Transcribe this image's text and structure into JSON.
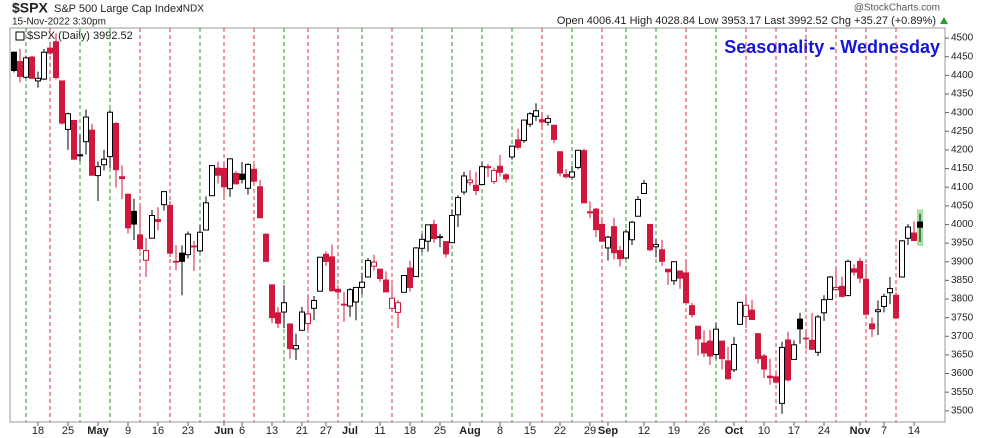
{
  "chart_data": {
    "type": "candlestick",
    "symbol": "$SPX",
    "name": "S&P 500 Large Cap Index",
    "exchange": "INDX",
    "datetime": "15-Nov-2022 3:30pm",
    "quote": "Open 4006.41 High 4028.84 Low 3953.17 Last 3992.52 Chg +35.27 (+0.89%)",
    "watermark": "@StockCharts.com",
    "title": "Seasonality - Wednesday",
    "series_name": "$SPX (Daily) 3992.52",
    "up_color": "#000000",
    "down_color": "#d0183e",
    "categories": [
      null,
      null,
      null,
      null,
      "18",
      null,
      null,
      null,
      null,
      "25",
      null,
      null,
      null,
      null,
      "May",
      null,
      null,
      null,
      null,
      "9",
      null,
      null,
      null,
      null,
      "16",
      null,
      null,
      null,
      null,
      "23",
      null,
      null,
      null,
      null,
      null,
      "Jun",
      null,
      null,
      "6",
      null,
      null,
      null,
      null,
      "13",
      null,
      null,
      null,
      null,
      "21",
      null,
      null,
      null,
      "27",
      null,
      null,
      null,
      "Jul",
      null,
      null,
      null,
      null,
      "11",
      null,
      null,
      null,
      null,
      "18",
      null,
      null,
      null,
      null,
      "25",
      null,
      null,
      null,
      null,
      "Aug",
      null,
      null,
      null,
      null,
      "8",
      null,
      null,
      null,
      null,
      "15",
      null,
      null,
      null,
      null,
      "22",
      null,
      null,
      null,
      null,
      "29",
      null,
      null,
      "Sep",
      null,
      null,
      null,
      null,
      null,
      "12",
      null,
      null,
      null,
      null,
      "19",
      null,
      null,
      null,
      null,
      "26",
      null,
      null,
      null,
      null,
      "Oct",
      null,
      null,
      null,
      null,
      "10",
      null,
      null,
      null,
      null,
      "17",
      null,
      null,
      null,
      null,
      "24",
      null,
      null,
      null,
      null,
      null,
      "Nov",
      null,
      null,
      null,
      "7",
      null,
      null,
      null,
      null,
      "14",
      null
    ],
    "open": [
      4462,
      4437,
      4395,
      4449,
      4385,
      4390,
      4473,
      4490,
      4385,
      4255,
      4279,
      4187,
      4222,
      4253,
      4131,
      4160,
      4182,
      4271,
      4128,
      4081,
      4035,
      3972,
      3904,
      3963,
      4013,
      4053,
      4051,
      3900,
      3923,
      3919,
      3942,
      3929,
      3985,
      4077,
      4151,
      4150,
      4096,
      4137,
      4135,
      4097,
      4148,
      4101,
      3974,
      3838,
      3763,
      3765,
      3733,
      3666,
      3716,
      3734,
      3775,
      3821,
      3920,
      3913,
      3826,
      3786,
      3781,
      3792,
      3831,
      3859,
      3888,
      3880,
      3851,
      3775,
      3764,
      3818,
      3883,
      3860,
      3936,
      3955,
      4000,
      3966,
      3954,
      3951,
      4026,
      4087,
      4112,
      4105,
      4107,
      4155,
      4115,
      4156,
      4133,
      4181,
      4227,
      4225,
      4269,
      4290,
      4281,
      4274,
      4266,
      4195,
      4134,
      4127,
      4153,
      4198,
      4034,
      4041,
      4000,
      3937,
      3994,
      3930,
      3910,
      3959,
      4022,
      4083,
      4000,
      3940,
      3932,
      3880,
      3849,
      3875,
      3870,
      3782,
      3727,
      3682,
      3687,
      3651,
      3687,
      3634,
      3610,
      3732,
      3753,
      3770,
      3707,
      3647,
      3593,
      3591,
      3520,
      3690,
      3638,
      3746,
      3695,
      3689,
      3657,
      3763,
      3799,
      3825,
      3834,
      3809,
      3881,
      3901,
      3853,
      3733,
      3766,
      3780,
      3817,
      3810,
      3859,
      3963,
      3977,
      4006.41
    ],
    "high": [
      4464,
      4471,
      4453,
      4453,
      4410,
      4471,
      4489,
      4513,
      4386,
      4300,
      4280,
      4240,
      4308,
      4270,
      4169,
      4200,
      4308,
      4274,
      4158,
      4082,
      4069,
      4050,
      3964,
      4039,
      4046,
      4088,
      4063,
      3945,
      3944,
      3981,
      3956,
      3999,
      4075,
      4158,
      4169,
      4167,
      4177,
      4143,
      4168,
      4164,
      4160,
      4119,
      3975,
      3839,
      3778,
      3837,
      3733,
      3707,
      3779,
      3810,
      3808,
      3913,
      3928,
      3946,
      3837,
      3818,
      3829,
      3832,
      3870,
      3910,
      3919,
      3880,
      3874,
      3839,
      3797,
      3864,
      3903,
      3939,
      3975,
      3999,
      4013,
      3975,
      3954,
      4040,
      4078,
      4141,
      4145,
      4141,
      4168,
      4162,
      4152,
      4187,
      4137,
      4212,
      4257,
      4280,
      4301,
      4325,
      4302,
      4293,
      4266,
      4195,
      4149,
      4157,
      4200,
      4203,
      4062,
      4044,
      4015,
      3970,
      4018,
      3942,
      3987,
      4010,
      4076,
      4119,
      4000,
      3961,
      3959,
      3880,
      3901,
      3876,
      3907,
      3790,
      3727,
      3716,
      3717,
      3736,
      3687,
      3672,
      3698,
      3791,
      3807,
      3798,
      3707,
      3652,
      3640,
      3608,
      3685,
      3712,
      3689,
      3763,
      3719,
      3762,
      3757,
      3810,
      3862,
      3887,
      3860,
      3905,
      3893,
      3911,
      3894,
      3751,
      3796,
      3814,
      3859,
      3818,
      3958,
      4001,
      4009,
      4028.84
    ],
    "low": [
      4408,
      4381,
      4392,
      4392,
      4367,
      4387,
      4455,
      4389,
      4268,
      4200,
      4175,
      4170,
      4188,
      4131,
      4063,
      4145,
      4151,
      4099,
      4068,
      3976,
      3958,
      3928,
      3859,
      3963,
      3984,
      4037,
      3912,
      3877,
      3810,
      3909,
      3875,
      3925,
      3985,
      4077,
      4110,
      4074,
      4074,
      4107,
      4110,
      4080,
      4107,
      4017,
      3900,
      3735,
      3722,
      3722,
      3640,
      3636,
      3716,
      3717,
      3743,
      3821,
      3889,
      3820,
      3799,
      3739,
      3752,
      3743,
      3812,
      3859,
      3876,
      3846,
      3818,
      3765,
      3722,
      3818,
      3820,
      3860,
      3925,
      3927,
      3951,
      3939,
      3911,
      3951,
      3993,
      4080,
      4104,
      4079,
      4107,
      4127,
      4108,
      4128,
      4112,
      4174,
      4201,
      4219,
      4261,
      4278,
      4253,
      4265,
      4218,
      4129,
      4124,
      4120,
      4148,
      4057,
      4017,
      3966,
      3954,
      3903,
      3906,
      3887,
      3907,
      3945,
      4022,
      4083,
      3928,
      3912,
      3888,
      3838,
      3838,
      3827,
      3789,
      3750,
      3648,
      3644,
      3623,
      3640,
      3611,
      3584,
      3604,
      3732,
      3723,
      3744,
      3627,
      3588,
      3570,
      3573,
      3492,
      3579,
      3638,
      3680,
      3666,
      3664,
      3647,
      3741,
      3799,
      3825,
      3804,
      3809,
      3863,
      3843,
      3759,
      3698,
      3703,
      3764,
      3786,
      3749,
      3859,
      3945,
      3956,
      3953.17
    ],
    "close": [
      4413,
      4397,
      4447,
      4392,
      4392,
      4462,
      4460,
      4394,
      4272,
      4297,
      4175,
      4184,
      4288,
      4132,
      4155,
      4175,
      4301,
      4147,
      4123,
      3991,
      4001,
      3935,
      3930,
      4024,
      4008,
      4088,
      3923,
      3901,
      3901,
      3974,
      3941,
      3979,
      4058,
      4158,
      4132,
      4101,
      4176,
      4109,
      4121,
      4161,
      4116,
      4018,
      3901,
      3750,
      3735,
      3790,
      3667,
      3675,
      3765,
      3760,
      3796,
      3912,
      3901,
      3822,
      3819,
      3785,
      3825,
      3831,
      3845,
      3903,
      3899,
      3855,
      3819,
      3802,
      3790,
      3863,
      3831,
      3937,
      3960,
      3999,
      3962,
      3967,
      3921,
      4024,
      4072,
      4130,
      4119,
      4091,
      4155,
      4152,
      4145,
      4140,
      4122,
      4210,
      4207,
      4280,
      4297,
      4305,
      4275,
      4284,
      4228,
      4138,
      4128,
      4141,
      4199,
      4058,
      4031,
      3986,
      3955,
      3966,
      3924,
      3908,
      3980,
      4006,
      4067,
      4110,
      3932,
      3946,
      3901,
      3873,
      3900,
      3856,
      3790,
      3758,
      3693,
      3655,
      3647,
      3719,
      3640,
      3586,
      3678,
      3791,
      3783,
      3745,
      3640,
      3612,
      3589,
      3577,
      3670,
      3583,
      3677,
      3720,
      3695,
      3665,
      3752,
      3798,
      3859,
      3831,
      3807,
      3901,
      3872,
      3856,
      3759,
      3720,
      3771,
      3807,
      3828,
      3749,
      3956,
      3993,
      3957,
      3992.52
    ],
    "ylim": [
      3470,
      4527
    ],
    "yticks": [
      3500,
      3550,
      3600,
      3650,
      3700,
      3750,
      3800,
      3850,
      3900,
      3950,
      4000,
      4050,
      4100,
      4150,
      4200,
      4250,
      4300,
      4350,
      4400,
      4450,
      4500
    ]
  }
}
